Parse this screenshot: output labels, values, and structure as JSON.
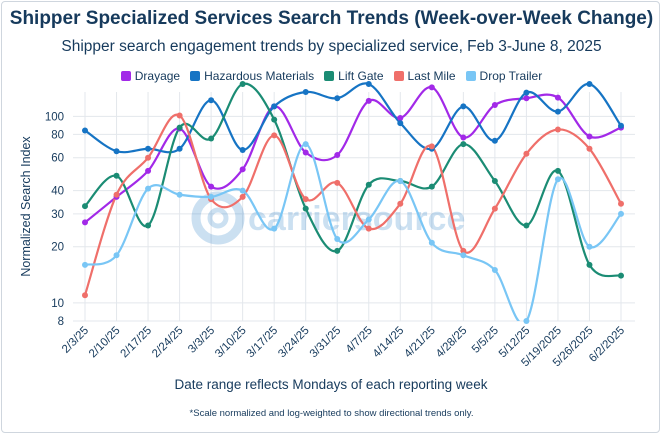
{
  "chart_data": {
    "type": "line",
    "title": "Shipper Specialized Services Search Trends (Week-over-Week Change)",
    "subtitle": "Shipper search engagement trends by specialized service, Feb 3-June 8, 2025",
    "xlabel": "Date range reflects Mondays of each reporting week",
    "ylabel": "Normalized Search Index",
    "footnote": "*Scale normalized and log-weighted to show directional trends only.",
    "watermark": "carriersource",
    "y_scale": "log",
    "ylim": [
      8,
      135
    ],
    "y_ticks": [
      8,
      10,
      20,
      30,
      40,
      60,
      80,
      100
    ],
    "grid": true,
    "legend_position": "top",
    "categories": [
      "2/3/25",
      "2/10/25",
      "2/17/25",
      "2/24/25",
      "3/3/25",
      "3/10/25",
      "3/17/25",
      "3/24/25",
      "3/31/25",
      "4/7/25",
      "4/14/25",
      "4/21/25",
      "4/28/25",
      "5/5/25",
      "5/12/25",
      "5/19/2025",
      "5/26/2025",
      "6/2/2025"
    ],
    "series": [
      {
        "name": "Drayage",
        "color": "#a229e8",
        "values": [
          27,
          37,
          51,
          86,
          42,
          52,
          113,
          64,
          62,
          121,
          98,
          143,
          77,
          115,
          125,
          126,
          78,
          87
        ]
      },
      {
        "name": "Hazardous Materials",
        "color": "#1674c4",
        "values": [
          84,
          65,
          67,
          67,
          122,
          66,
          113,
          135,
          125,
          160,
          92,
          67,
          113,
          74,
          134,
          106,
          167,
          89
        ]
      },
      {
        "name": "Lift Gate",
        "color": "#1b8c74",
        "values": [
          33,
          48,
          26,
          87,
          76,
          152,
          96,
          32,
          19,
          43,
          45,
          42,
          71,
          45,
          26,
          51,
          16,
          14
        ]
      },
      {
        "name": "Last Mile",
        "color": "#ef6f6a",
        "values": [
          11,
          38,
          60,
          101,
          36,
          37,
          79,
          36,
          44,
          25,
          34,
          69,
          19,
          32,
          63,
          85,
          67,
          34
        ]
      },
      {
        "name": "Drop Trailer",
        "color": "#79c6f5",
        "values": [
          16,
          18,
          41,
          38,
          37,
          40,
          25,
          71,
          22,
          28,
          45,
          21,
          18,
          15,
          8,
          46,
          20,
          30
        ]
      }
    ]
  }
}
